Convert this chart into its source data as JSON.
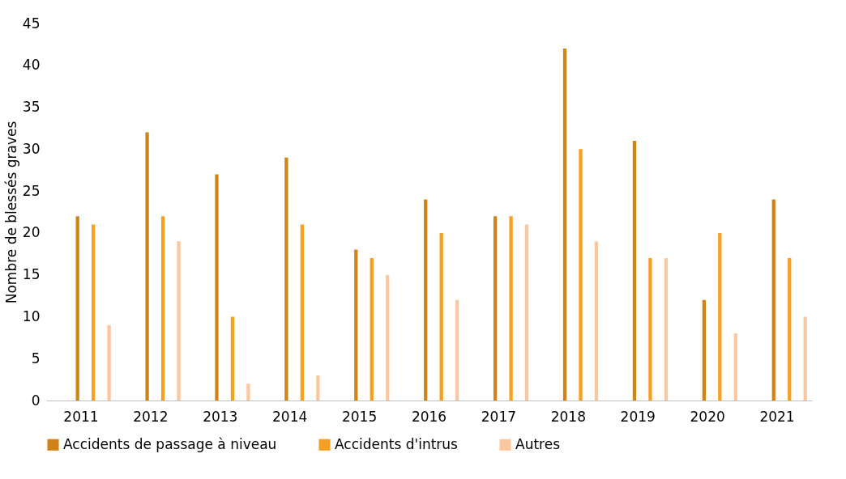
{
  "chart_data": {
    "type": "bar",
    "ylabel": "Nombre de blessés graves",
    "categories": [
      "2011",
      "2012",
      "2013",
      "2014",
      "2015",
      "2016",
      "2017",
      "2018",
      "2019",
      "2020",
      "2021"
    ],
    "series": [
      {
        "name": "Accidents de passage à niveau",
        "color": "#d08418",
        "values": [
          22,
          32,
          27,
          29,
          18,
          24,
          22,
          42,
          31,
          12,
          24
        ]
      },
      {
        "name": "Accidents d'intrus",
        "color": "#f5a020",
        "values": [
          21,
          22,
          10,
          21,
          17,
          20,
          22,
          30,
          17,
          20,
          17
        ]
      },
      {
        "name": "Autres",
        "color": "#f9c8a0",
        "values": [
          9,
          19,
          2,
          3,
          15,
          12,
          21,
          19,
          17,
          8,
          10
        ]
      }
    ],
    "ylim": [
      0,
      45
    ],
    "yticks": [
      0,
      5,
      10,
      15,
      20,
      25,
      30,
      35,
      40,
      45
    ],
    "legend": "bottom"
  }
}
